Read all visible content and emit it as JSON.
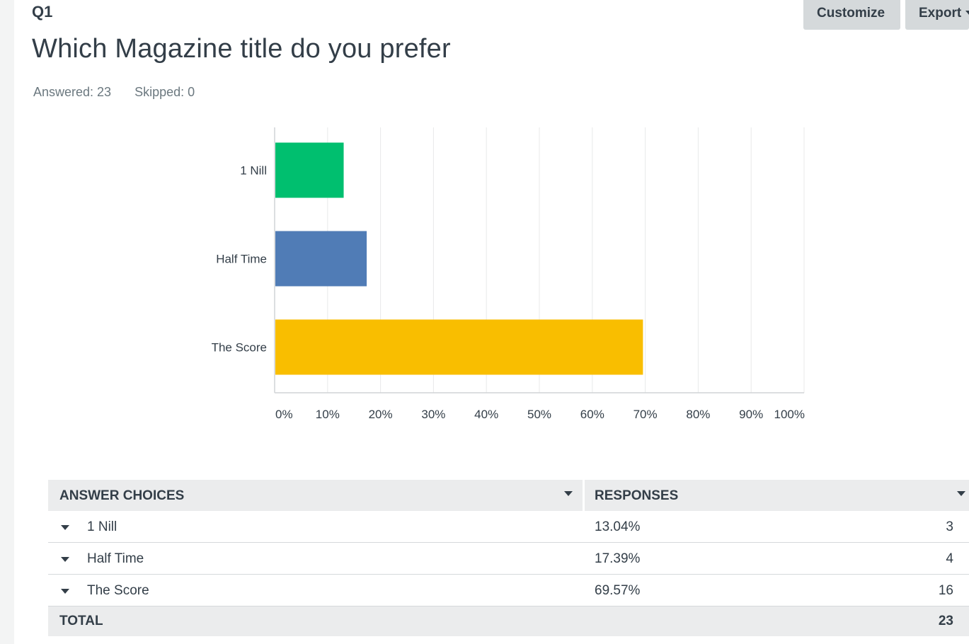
{
  "question": {
    "number": "Q1",
    "title": "Which Magazine title do you prefer",
    "answered": "Answered: 23",
    "skipped": "Skipped: 0"
  },
  "toolbar": {
    "customize_label": "Customize",
    "export_label": "Export"
  },
  "chart_data": {
    "type": "bar",
    "orientation": "horizontal",
    "categories": [
      "1 Nill",
      "Half Time",
      "The Score"
    ],
    "values": [
      13.04,
      17.39,
      69.57
    ],
    "colors": [
      "#00bf6f",
      "#507cb6",
      "#f9be00"
    ],
    "xlim": [
      0,
      100
    ],
    "x_ticks": [
      "0%",
      "10%",
      "20%",
      "30%",
      "40%",
      "50%",
      "60%",
      "70%",
      "80%",
      "90%",
      "100%"
    ],
    "grid": true
  },
  "table": {
    "headers": {
      "choices": "ANSWER CHOICES",
      "responses": "RESPONSES"
    },
    "rows": [
      {
        "label": "1 Nill",
        "percent": "13.04%",
        "count": "3"
      },
      {
        "label": "Half Time",
        "percent": "17.39%",
        "count": "4"
      },
      {
        "label": "The Score",
        "percent": "69.57%",
        "count": "16"
      }
    ],
    "total_label": "TOTAL",
    "total_count": "23"
  }
}
